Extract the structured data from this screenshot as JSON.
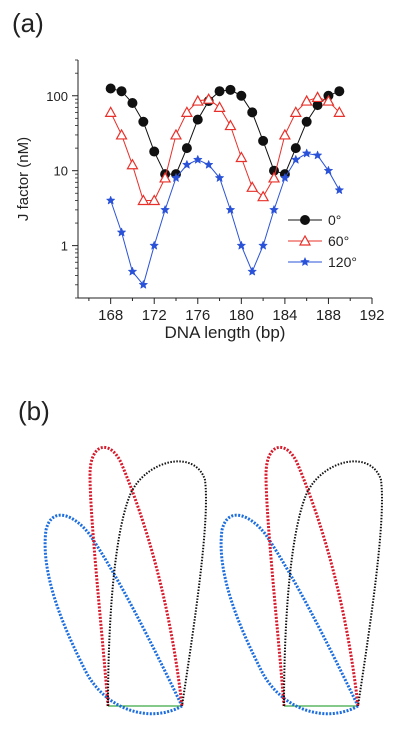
{
  "panels": {
    "a": "(a)",
    "b": "(b)"
  },
  "colors": {
    "series_0": "#111111",
    "series_60": "#e8302a",
    "series_120": "#2a52d8",
    "loop_red": "#d81a2c",
    "loop_black": "#111111",
    "loop_blue": "#1c6ee0",
    "baseline": "#3aa845"
  },
  "chart_data": {
    "type": "line",
    "xlabel": "DNA length (bp)",
    "ylabel": "J factor (nM)",
    "yscale": "log",
    "xlim": [
      165,
      192
    ],
    "ylim": [
      0.2,
      300
    ],
    "xticks": [
      168,
      172,
      176,
      180,
      184,
      188,
      192
    ],
    "yticks": [
      1,
      10,
      100
    ],
    "xtick_labels": [
      "168",
      "172",
      "176",
      "180",
      "184",
      "188",
      "192"
    ],
    "ytick_labels": [
      "1",
      "10",
      "100"
    ],
    "legend_position": "lower-right",
    "grid": false,
    "series": [
      {
        "name": "0°",
        "marker": "circle",
        "x": [
          168,
          169,
          170,
          171,
          172,
          173,
          174,
          175,
          176,
          177,
          178,
          179,
          180,
          181,
          182,
          183,
          184,
          185,
          186,
          187,
          188,
          189
        ],
        "y": [
          125,
          115,
          80,
          45,
          18,
          9,
          9,
          20,
          48,
          85,
          115,
          120,
          100,
          60,
          25,
          10,
          9,
          20,
          45,
          75,
          100,
          115
        ]
      },
      {
        "name": "60°",
        "marker": "triangle",
        "x": [
          168,
          169,
          170,
          171,
          172,
          173,
          174,
          175,
          176,
          177,
          178,
          179,
          180,
          181,
          182,
          183,
          184,
          185,
          186,
          187,
          188,
          189
        ],
        "y": [
          60,
          30,
          12,
          4,
          4,
          8,
          30,
          60,
          85,
          90,
          70,
          40,
          15,
          6,
          4.5,
          8,
          30,
          60,
          85,
          95,
          85,
          60
        ]
      },
      {
        "name": "120°",
        "marker": "star",
        "x": [
          168,
          169,
          170,
          171,
          172,
          173,
          174,
          175,
          176,
          177,
          178,
          179,
          180,
          181,
          182,
          183,
          184,
          185,
          186,
          187,
          188,
          189
        ],
        "y": [
          4,
          1.5,
          0.45,
          0.3,
          1,
          3,
          8,
          12,
          14,
          12,
          8,
          3,
          1,
          0.45,
          1,
          3,
          8,
          14,
          17,
          16,
          10,
          5.5
        ]
      }
    ]
  }
}
